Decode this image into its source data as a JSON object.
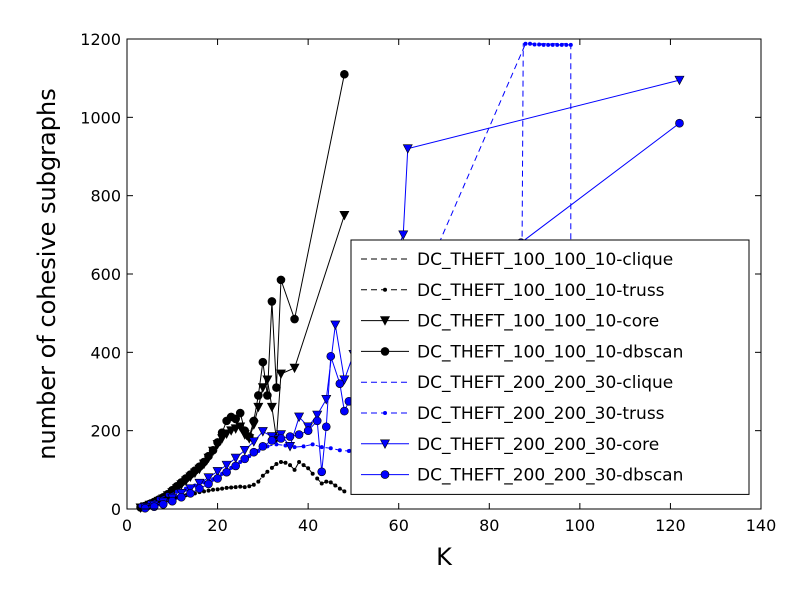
{
  "chart_data": {
    "type": "line",
    "title": "",
    "xlabel": "K",
    "ylabel": "number of cohesive subgraphs",
    "xlim": [
      0,
      140
    ],
    "ylim": [
      0,
      1200
    ],
    "xticks": [
      0,
      20,
      40,
      60,
      80,
      100,
      120,
      140
    ],
    "yticks": [
      0,
      200,
      400,
      600,
      800,
      1000,
      1200
    ],
    "grid": false,
    "legend_position": "lower-right",
    "series": [
      {
        "name": "DC_THEFT_100_100_10-clique",
        "color": "#000000",
        "linestyle": "dashed",
        "marker": "none",
        "x": [],
        "y": []
      },
      {
        "name": "DC_THEFT_100_100_10-truss",
        "color": "#000000",
        "linestyle": "dashed",
        "marker": "dot",
        "x": [
          3,
          4,
          5,
          6,
          7,
          8,
          9,
          10,
          11,
          12,
          13,
          14,
          15,
          16,
          17,
          18,
          19,
          20,
          21,
          22,
          23,
          24,
          25,
          26,
          27,
          28,
          29,
          30,
          31,
          32,
          33,
          34,
          35,
          36,
          37,
          38,
          39,
          40,
          41,
          42,
          43,
          44,
          45,
          46,
          47,
          48
        ],
        "y": [
          5,
          8,
          11,
          14,
          17,
          20,
          23,
          26,
          29,
          32,
          35,
          38,
          40,
          43,
          45,
          47,
          49,
          50,
          52,
          54,
          55,
          56,
          57,
          56,
          58,
          62,
          70,
          85,
          95,
          105,
          115,
          120,
          118,
          112,
          100,
          120,
          112,
          104,
          90,
          78,
          65,
          70,
          68,
          60,
          52,
          45
        ]
      },
      {
        "name": "DC_THEFT_100_100_10-core",
        "color": "#000000",
        "linestyle": "solid",
        "marker": "triangle-down",
        "x": [
          3,
          4,
          5,
          6,
          7,
          8,
          9,
          10,
          11,
          12,
          13,
          14,
          15,
          16,
          17,
          18,
          19,
          20,
          21,
          22,
          23,
          24,
          25,
          26,
          27,
          28,
          29,
          30,
          31,
          32,
          33,
          34,
          37,
          48
        ],
        "y": [
          3,
          6,
          10,
          14,
          20,
          26,
          34,
          42,
          52,
          62,
          72,
          82,
          92,
          102,
          115,
          130,
          148,
          165,
          180,
          192,
          200,
          205,
          210,
          190,
          180,
          215,
          260,
          310,
          330,
          260,
          180,
          345,
          360,
          750
        ]
      },
      {
        "name": "DC_THEFT_100_100_10-dbscan",
        "color": "#000000",
        "linestyle": "solid",
        "marker": "circle",
        "x": [
          3,
          4,
          5,
          6,
          7,
          8,
          9,
          10,
          11,
          12,
          13,
          14,
          15,
          16,
          17,
          18,
          19,
          20,
          21,
          22,
          23,
          24,
          25,
          26,
          27,
          28,
          29,
          30,
          31,
          32,
          33,
          34,
          37,
          48
        ],
        "y": [
          4,
          8,
          13,
          18,
          24,
          30,
          38,
          48,
          58,
          68,
          78,
          88,
          98,
          108,
          120,
          135,
          150,
          170,
          195,
          225,
          235,
          230,
          245,
          200,
          185,
          225,
          290,
          375,
          290,
          530,
          310,
          585,
          485,
          1110
        ]
      },
      {
        "name": "DC_THEFT_200_200_30-clique",
        "color": "#0000ff",
        "linestyle": "dashed",
        "marker": "none",
        "x": [
          86,
          87,
          87.5,
          98,
          98,
          99
        ],
        "y": [
          190,
          200,
          1188,
          1188,
          205,
          195
        ]
      },
      {
        "name": "DC_THEFT_200_200_30-truss",
        "color": "#0000ff",
        "linestyle": "dashed",
        "marker": "dot",
        "x": [
          3,
          5,
          7,
          9,
          11,
          13,
          15,
          17,
          19,
          21,
          23,
          25,
          27,
          29,
          31,
          33,
          35,
          37,
          39,
          41,
          43,
          45,
          47,
          49,
          88,
          89,
          90,
          91,
          92,
          93,
          94,
          95,
          96,
          97,
          98
        ],
        "y": [
          8,
          16,
          26,
          36,
          44,
          52,
          60,
          68,
          76,
          90,
          105,
          120,
          135,
          148,
          160,
          165,
          162,
          158,
          160,
          165,
          158,
          155,
          150,
          148,
          1188,
          1188,
          1186,
          1186,
          1185,
          1185,
          1185,
          1185,
          1185,
          1185,
          1185
        ]
      },
      {
        "name": "DC_THEFT_200_200_30-core",
        "color": "#0000ff",
        "linestyle": "solid",
        "marker": "triangle-down",
        "x": [
          4,
          6,
          8,
          10,
          12,
          14,
          16,
          18,
          20,
          22,
          24,
          26,
          28,
          30,
          32,
          34,
          36,
          38,
          40,
          42,
          44,
          46,
          48,
          50,
          61,
          62,
          122
        ],
        "y": [
          4,
          10,
          18,
          28,
          40,
          52,
          66,
          80,
          96,
          112,
          130,
          150,
          172,
          198,
          185,
          190,
          160,
          235,
          210,
          240,
          280,
          470,
          330,
          395,
          700,
          920,
          1095
        ]
      },
      {
        "name": "DC_THEFT_200_200_30-dbscan",
        "color": "#0000ff",
        "linestyle": "solid",
        "marker": "circle",
        "x": [
          4,
          6,
          8,
          10,
          12,
          14,
          16,
          18,
          20,
          22,
          24,
          26,
          28,
          30,
          32,
          34,
          36,
          38,
          40,
          42,
          43,
          44,
          45,
          47,
          48,
          49,
          87,
          122
        ],
        "y": [
          2,
          6,
          12,
          20,
          30,
          40,
          52,
          64,
          78,
          94,
          110,
          128,
          145,
          160,
          175,
          180,
          185,
          190,
          200,
          225,
          95,
          210,
          390,
          320,
          250,
          275,
          680,
          985
        ]
      }
    ]
  }
}
